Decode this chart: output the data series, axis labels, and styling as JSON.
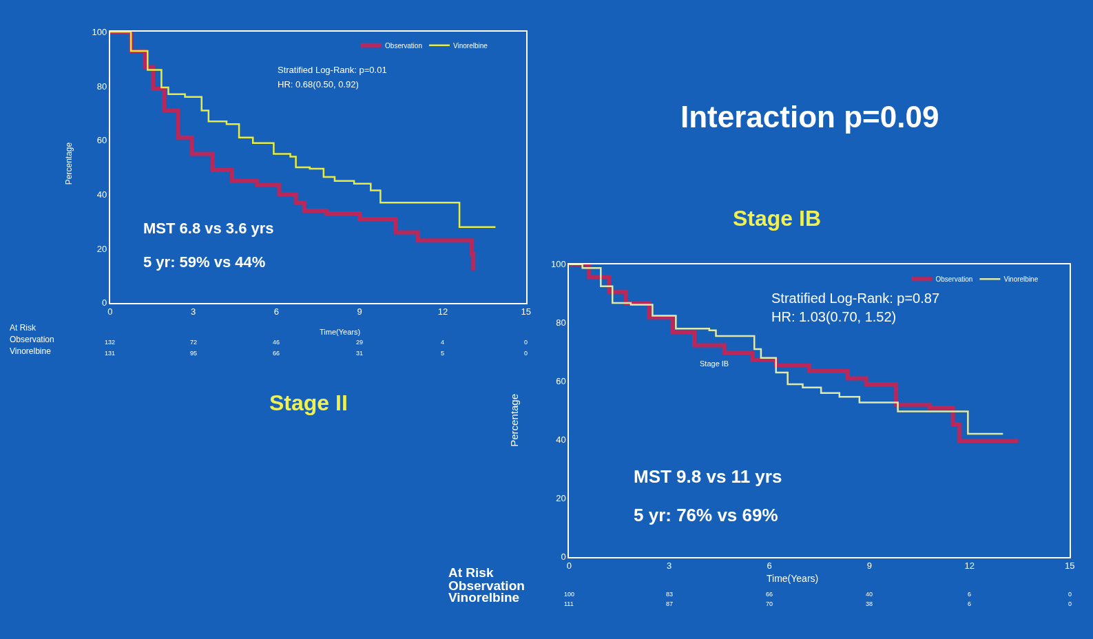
{
  "chart_data": [
    {
      "type": "step",
      "title": "Stage II",
      "xlabel": "Time(Years)",
      "ylabel": "Percentage",
      "xlim": [
        0,
        15
      ],
      "xticks": [
        0,
        3,
        6,
        9,
        12,
        15
      ],
      "ylim": [
        0,
        100
      ],
      "yticks": [
        0,
        20,
        40,
        60,
        80,
        100
      ],
      "legend": "top right",
      "grid": false,
      "series": [
        {
          "name": "Observation",
          "color": "#b8285a",
          "x": [
            0,
            0.75,
            1.25,
            1.55,
            1.95,
            2.45,
            2.95,
            3.7,
            4.4,
            5.3,
            6.1,
            6.7,
            7.0,
            7.8,
            9.0,
            10.3,
            11.1,
            13.0,
            13.05,
            13.1
          ],
          "values": [
            100,
            93,
            87,
            79,
            71,
            61,
            55,
            49,
            45,
            43.5,
            40,
            37,
            34,
            33,
            31,
            26,
            23,
            23,
            18,
            12
          ]
        },
        {
          "name": "Vinorelbine",
          "color": "#e8ec40",
          "x": [
            0,
            0.75,
            1.35,
            1.85,
            2.1,
            2.7,
            3.3,
            3.55,
            4.2,
            4.65,
            5.15,
            5.9,
            6.5,
            6.7,
            7.2,
            7.7,
            8.1,
            8.8,
            9.4,
            9.75,
            12.6,
            13.9
          ],
          "values": [
            100,
            93,
            86,
            79.5,
            77,
            76,
            71,
            67,
            66,
            61,
            59,
            55,
            54,
            50,
            49.5,
            46.5,
            45,
            44,
            41.5,
            37,
            28,
            28
          ]
        }
      ],
      "annotations": [
        "Stratified Log-Rank: p=0.01",
        "HR: 0.68(0.50, 0.92)",
        "MST 6.8 vs 3.6 yrs",
        "5 yr: 59% vs 44%",
        "At Risk",
        "Observation",
        "Vinorelbine",
        "132 72 46 29 4 0",
        "131 95 66 31 5 0"
      ]
    },
    {
      "type": "step",
      "title": "Stage IB",
      "xlabel": "Time(Years)",
      "ylabel": "Percentage",
      "xlim": [
        0,
        15
      ],
      "xticks": [
        0,
        3,
        6,
        9,
        12,
        15
      ],
      "ylim": [
        0,
        100
      ],
      "yticks": [
        0,
        20,
        40,
        60,
        80,
        100
      ],
      "legend": "top right",
      "grid": false,
      "series": [
        {
          "name": "Observation",
          "color": "#b8285a",
          "x": [
            0,
            0.6,
            1.2,
            1.7,
            2.4,
            3.1,
            3.75,
            4.65,
            5.5,
            6.2,
            7.2,
            8.35,
            8.9,
            9.8,
            10.8,
            11.5,
            11.7,
            13.4
          ],
          "values": [
            100,
            95.6,
            90.6,
            86.8,
            81.8,
            76.7,
            72.3,
            69.8,
            67.3,
            65.4,
            63.5,
            61,
            59,
            52,
            51,
            45.3,
            39.6,
            39
          ]
        },
        {
          "name": "Vinorelbine",
          "color": "#e0eaa8",
          "x": [
            0,
            0.4,
            0.95,
            1.3,
            1.85,
            2.5,
            3.2,
            4.2,
            4.4,
            5.55,
            5.75,
            6.2,
            6.55,
            7.0,
            7.55,
            8.1,
            8.7,
            9.85,
            11.95,
            13.0
          ],
          "values": [
            100,
            98.7,
            92.5,
            86.8,
            86.2,
            82.4,
            78,
            77.4,
            75.5,
            71,
            68,
            63,
            59,
            57.9,
            56,
            54.7,
            52.8,
            49.7,
            42.1,
            42.1
          ]
        }
      ],
      "annotations": [
        "Stratified Log-Rank: p=0.87",
        "HR: 1.03(0.70, 1.52)",
        "Stage IB",
        "MST 9.8 vs 11 yrs",
        "5 yr: 76% vs 69%",
        "At Risk",
        "Observation",
        "Vinorelbine",
        "100 83 66 40 6 0",
        "111 87 70 38 6 0",
        "Interaction p=0.09"
      ]
    }
  ]
}
